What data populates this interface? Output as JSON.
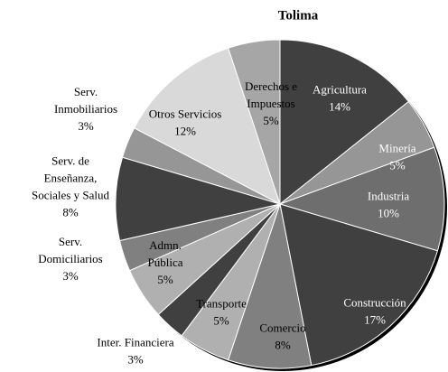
{
  "chart_data": {
    "type": "pie",
    "title": "Tolima",
    "categories": [
      "Agricultura",
      "Minería",
      "Industria",
      "Construcción",
      "Comercio",
      "Transporte",
      "Inter. Financiera",
      "Admn.\nPública",
      "Serv.\nDomiciliarios",
      "Serv. de\nEnseñanza,\nSociales y Salud",
      "Serv.\nInmobiliarios",
      "Otros Servicios",
      "Derechos e\nImpuestos"
    ],
    "values": [
      14,
      5,
      10,
      17,
      8,
      5,
      3,
      5,
      3,
      8,
      3,
      12,
      5
    ],
    "value_labels": [
      "14%",
      "5%",
      "10%",
      "17%",
      "8%",
      "5%",
      "3%",
      "5%",
      "3%",
      "8%",
      "3%",
      "12%",
      "5%"
    ],
    "colors": [
      "#404040",
      "#969696",
      "#6e6e6e",
      "#404040",
      "#808080",
      "#b0b0b0",
      "#404040",
      "#b0b0b0",
      "#808080",
      "#404040",
      "#969696",
      "#d9d9d9",
      "#a6a6a6"
    ]
  }
}
